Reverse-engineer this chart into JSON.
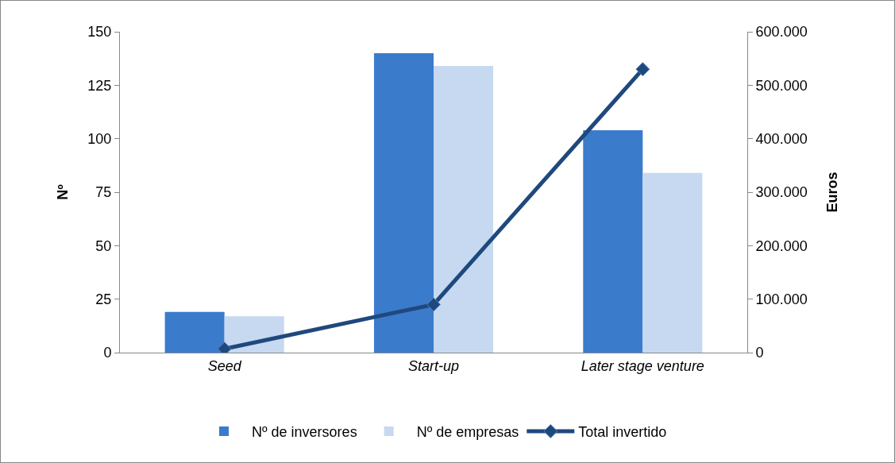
{
  "chart_data": {
    "type": "bar",
    "ylabel": "Nº",
    "y2label": "Euros",
    "categories": [
      "Seed",
      "Start-up",
      "Later stage venture"
    ],
    "series": [
      {
        "name": "Nº de inversores",
        "color": "#3b7bcc",
        "values": [
          19,
          140,
          104
        ]
      },
      {
        "name": "Nº de empresas",
        "color": "#c6d9f0",
        "values": [
          17,
          134,
          84
        ]
      },
      {
        "name": "Total invertido",
        "type": "line",
        "axis": "y2",
        "color": "#1f497d",
        "values": [
          7000,
          90000,
          530000
        ]
      }
    ],
    "ylim": [
      0,
      150
    ],
    "yticks": [
      0,
      25,
      50,
      75,
      100,
      125,
      150
    ],
    "y2lim": [
      0,
      600000
    ],
    "y2ticks": [
      0,
      {
        "value": 100000,
        "label": "100.000"
      },
      {
        "value": 200000,
        "label": "200.000"
      },
      {
        "value": 300000,
        "label": "300.000"
      },
      {
        "value": 400000,
        "label": "400.000"
      },
      {
        "value": 500000,
        "label": "500.000"
      },
      {
        "value": 600000,
        "label": "600.000"
      }
    ],
    "marker": "diamond",
    "grid": false,
    "legend": "bottom"
  }
}
